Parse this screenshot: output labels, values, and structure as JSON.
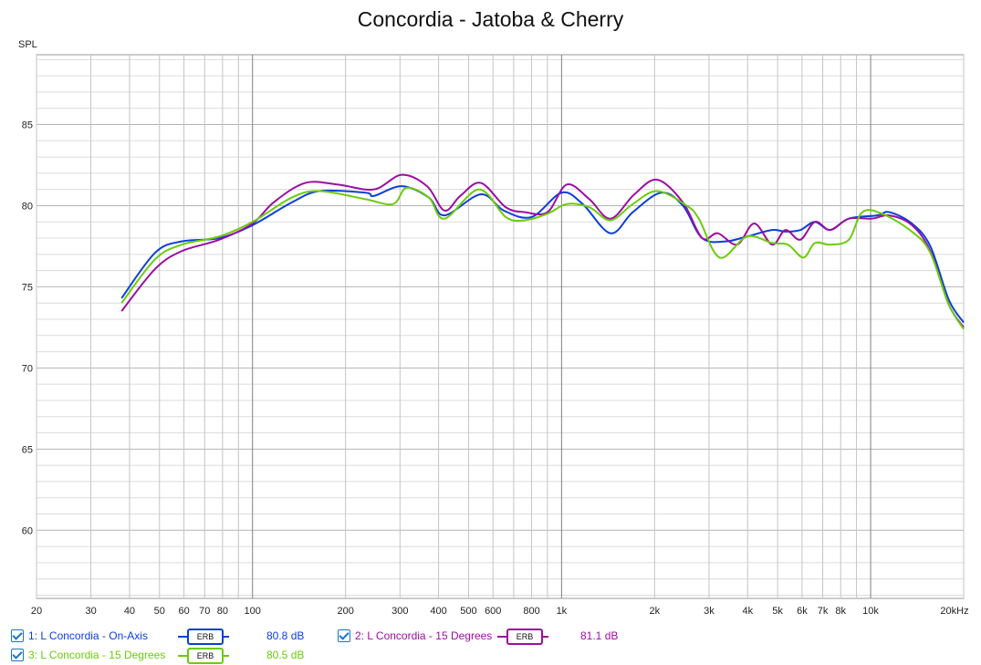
{
  "chart_data": {
    "type": "line",
    "title": "Concordia - Jatoba & Cherry",
    "ylabel": "SPL",
    "xlabel": "Hz",
    "xscale": "log",
    "xlim": [
      20,
      20000
    ],
    "ylim": [
      55.8,
      89.3
    ],
    "grid": true,
    "yticks": [
      60,
      65,
      70,
      75,
      80,
      85
    ],
    "xticks": [
      {
        "v": 20,
        "l": "20"
      },
      {
        "v": 30,
        "l": "30"
      },
      {
        "v": 40,
        "l": "40"
      },
      {
        "v": 50,
        "l": "50"
      },
      {
        "v": 60,
        "l": "60"
      },
      {
        "v": 70,
        "l": "70"
      },
      {
        "v": 80,
        "l": "80"
      },
      {
        "v": 100,
        "l": "100"
      },
      {
        "v": 200,
        "l": "200"
      },
      {
        "v": 300,
        "l": "300"
      },
      {
        "v": 400,
        "l": "400"
      },
      {
        "v": 500,
        "l": "500"
      },
      {
        "v": 600,
        "l": "600"
      },
      {
        "v": 800,
        "l": "800"
      },
      {
        "v": 1000,
        "l": "1k"
      },
      {
        "v": 2000,
        "l": "2k"
      },
      {
        "v": 3000,
        "l": "3k"
      },
      {
        "v": 4000,
        "l": "4k"
      },
      {
        "v": 5000,
        "l": "5k"
      },
      {
        "v": 6000,
        "l": "6k"
      },
      {
        "v": 7000,
        "l": "7k"
      },
      {
        "v": 8000,
        "l": "8k"
      },
      {
        "v": 10000,
        "l": "10k"
      },
      {
        "v": 20000,
        "l": "20kHz"
      }
    ],
    "series": [
      {
        "name": "1: L Concordia - On-Axis",
        "color": "#0a3fd8",
        "smoothing": "ERB",
        "avg": "80.8 dB",
        "x": [
          37.7,
          48.4,
          59,
          78,
          100,
          134,
          165,
          232,
          247,
          304,
          372,
          418,
          548,
          650,
          800,
          1000,
          1170,
          1440,
          1700,
          2100,
          2470,
          2850,
          3400,
          3980,
          4800,
          5300,
          5920,
          6600,
          7400,
          8500,
          10500,
          11500,
          13600,
          15600,
          17900,
          20000
        ],
        "y": [
          74.3,
          77.1,
          77.8,
          78.0,
          78.8,
          80.2,
          80.9,
          80.8,
          80.6,
          81.2,
          80.5,
          79.4,
          80.7,
          79.7,
          79.3,
          80.8,
          80.1,
          78.3,
          79.6,
          80.8,
          80.0,
          78.0,
          77.8,
          78.1,
          78.5,
          78.4,
          78.5,
          79.0,
          78.5,
          79.2,
          79.4,
          79.6,
          78.9,
          77.5,
          74.2,
          72.8
        ]
      },
      {
        "name": "2: L Concordia - 15 Degrees",
        "color": "#9b0fa0",
        "smoothing": "ERB",
        "avg": "81.1 dB",
        "x": [
          37.7,
          48.4,
          59,
          78,
          100,
          117,
          148,
          189,
          247,
          304,
          367,
          418,
          470,
          548,
          660,
          760,
          900,
          1040,
          1230,
          1440,
          1720,
          2040,
          2470,
          2850,
          3200,
          3700,
          4200,
          4800,
          5300,
          5920,
          6600,
          7400,
          8500,
          10100,
          11500,
          13600,
          15600,
          17900,
          20000
        ],
        "y": [
          73.5,
          76.1,
          77.2,
          77.9,
          78.9,
          80.2,
          81.4,
          81.3,
          81.0,
          81.9,
          81.2,
          79.7,
          80.6,
          81.4,
          79.9,
          79.6,
          79.6,
          81.3,
          80.4,
          79.2,
          80.7,
          81.6,
          80.2,
          78.0,
          78.3,
          77.6,
          78.9,
          77.6,
          78.5,
          77.9,
          79.0,
          78.5,
          79.2,
          79.2,
          79.4,
          78.8,
          77.2,
          73.9,
          72.5
        ]
      },
      {
        "name": "3: L Concordia - 15 Degrees",
        "color": "#6ccb0c",
        "smoothing": "ERB",
        "avg": "80.5 dB",
        "x": [
          37.7,
          48.4,
          59,
          78,
          100,
          134,
          165,
          232,
          285,
          315,
          372,
          418,
          540,
          660,
          760,
          900,
          1040,
          1230,
          1440,
          1700,
          2040,
          2540,
          2780,
          3250,
          3980,
          4800,
          5400,
          6060,
          6600,
          7400,
          8500,
          9400,
          10900,
          13600,
          15600,
          17900,
          20000
        ],
        "y": [
          74.0,
          76.7,
          77.6,
          78.1,
          79.0,
          80.5,
          80.9,
          80.4,
          80.1,
          81.1,
          80.5,
          79.2,
          81.0,
          79.3,
          79.1,
          79.5,
          80.1,
          79.9,
          79.1,
          80.1,
          80.9,
          80.0,
          79.2,
          76.8,
          78.1,
          77.7,
          77.6,
          76.8,
          77.7,
          77.6,
          77.9,
          79.6,
          79.5,
          78.4,
          77.1,
          73.9,
          72.4
        ]
      }
    ]
  },
  "legend_badge": "ERB"
}
